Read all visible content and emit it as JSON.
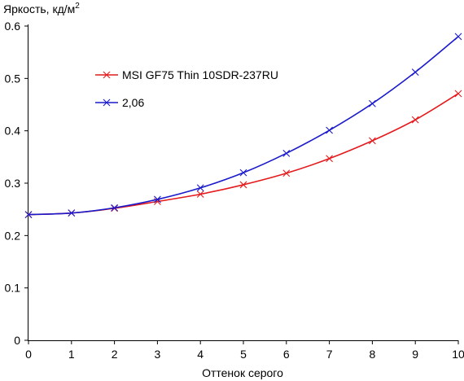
{
  "chart_data": {
    "type": "line",
    "title": "",
    "xlabel": "Оттенок серого",
    "ylabel_main": "Яркость, кд/м",
    "ylabel_sup": "2",
    "xlim": [
      0,
      10
    ],
    "ylim": [
      0,
      0.6
    ],
    "x_ticks": [
      "0",
      "1",
      "2",
      "3",
      "4",
      "5",
      "6",
      "7",
      "8",
      "9",
      "10"
    ],
    "y_ticks": [
      "0",
      "0.1",
      "0.2",
      "0.3",
      "0.4",
      "0.5",
      "0.6"
    ],
    "grid": false,
    "legend_position": "top-left",
    "x": [
      0,
      1,
      2,
      3,
      4,
      5,
      6,
      7,
      8,
      9,
      10
    ],
    "series": [
      {
        "name": "MSI GF75 Thin 10SDR-237RU",
        "color": "#e41a1c",
        "values": [
          0.24,
          0.243,
          0.252,
          0.265,
          0.279,
          0.297,
          0.319,
          0.347,
          0.381,
          0.421,
          0.471
        ]
      },
      {
        "name": "2,06",
        "color": "#1a1acc",
        "values": [
          0.24,
          0.243,
          0.253,
          0.269,
          0.291,
          0.32,
          0.357,
          0.401,
          0.452,
          0.512,
          0.58
        ]
      }
    ]
  }
}
